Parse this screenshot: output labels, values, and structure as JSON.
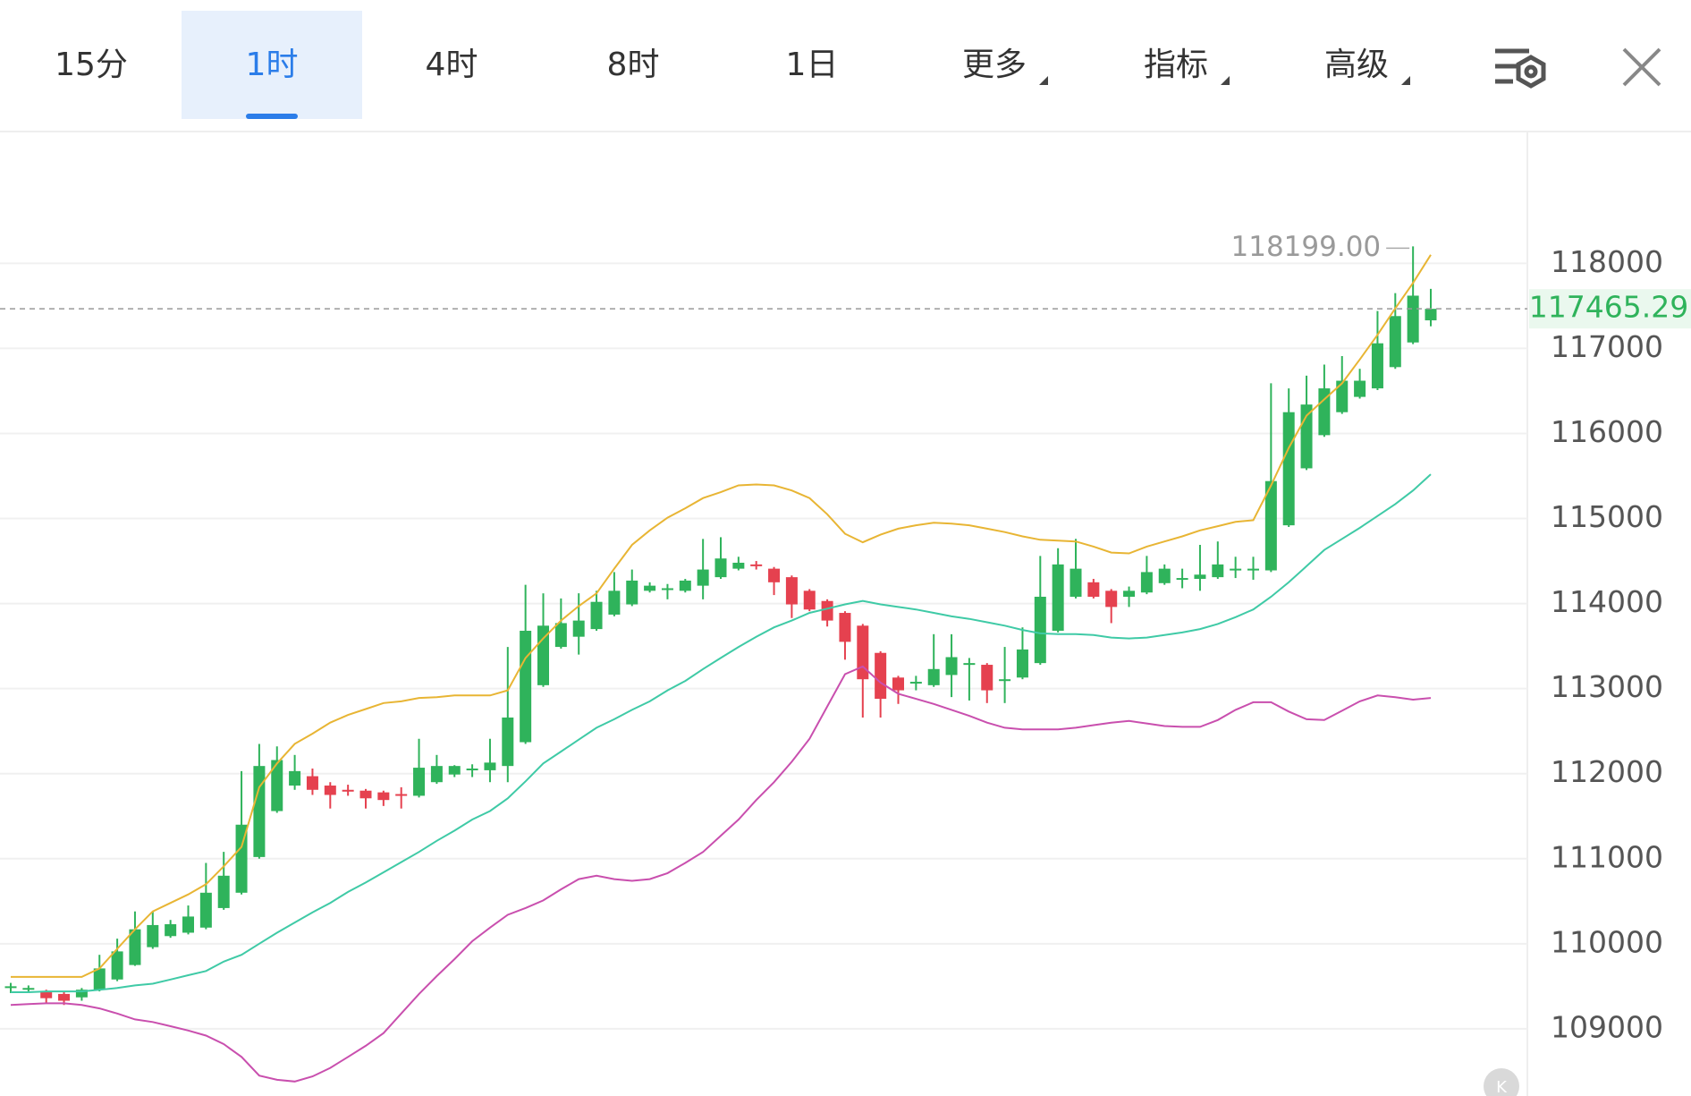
{
  "tabs": {
    "items": [
      {
        "label": "15分"
      },
      {
        "label": "1时"
      },
      {
        "label": "4时"
      },
      {
        "label": "8时"
      },
      {
        "label": "1日"
      },
      {
        "label": "更多",
        "dropdown": true
      },
      {
        "label": "指标",
        "dropdown": true
      },
      {
        "label": "高级",
        "dropdown": true
      }
    ],
    "selected": 1
  },
  "chart_data": {
    "type": "candlestick",
    "categories": [
      null,
      null,
      null,
      null,
      null,
      null,
      null,
      null,
      null,
      null,
      null,
      null,
      null,
      null,
      null,
      null,
      null,
      null,
      null,
      null,
      null,
      null,
      null,
      null,
      null,
      null,
      null,
      null,
      null,
      null,
      null,
      null,
      null,
      null,
      null,
      null,
      null,
      null,
      null,
      null,
      null,
      null,
      null,
      null,
      null,
      null,
      null,
      null,
      null,
      null,
      null,
      null,
      null,
      null,
      null,
      null,
      null,
      null,
      null,
      null,
      null,
      null,
      null,
      null,
      null,
      null,
      null,
      null,
      null,
      null,
      null,
      null,
      null,
      null,
      null,
      null,
      null,
      null,
      null,
      null,
      null
    ],
    "up_color": "#2fb35b",
    "down_color": "#e5414f",
    "open": [
      109480,
      109470,
      109430,
      109410,
      109370,
      109460,
      109580,
      109750,
      109960,
      110090,
      110130,
      110190,
      110420,
      110600,
      111020,
      111560,
      111860,
      111970,
      111860,
      111810,
      111800,
      111780,
      111760,
      111740,
      111900,
      111990,
      112050,
      112040,
      112090,
      112370,
      113040,
      113490,
      113610,
      113700,
      113870,
      113990,
      114150,
      114170,
      114150,
      114210,
      114310,
      114410,
      114460,
      114410,
      114310,
      114150,
      114030,
      113890,
      113740,
      113420,
      113130,
      113070,
      113040,
      113160,
      113290,
      113280,
      113100,
      113130,
      113300,
      113680,
      114080,
      114250,
      114150,
      114080,
      114130,
      114240,
      114280,
      114290,
      114310,
      114400,
      114400,
      114390,
      114920,
      115590,
      115980,
      116250,
      116430,
      116530,
      116780,
      117070,
      117330
    ],
    "high": [
      109540,
      109510,
      109460,
      109440,
      109480,
      109870,
      110060,
      110380,
      110380,
      110280,
      110450,
      110950,
      111080,
      112030,
      112350,
      112320,
      112220,
      112060,
      111900,
      111870,
      111820,
      111800,
      111840,
      112410,
      112220,
      112100,
      112110,
      112410,
      113490,
      114220,
      114120,
      114060,
      114120,
      114150,
      114370,
      114400,
      114250,
      114230,
      114290,
      114760,
      114780,
      114550,
      114500,
      114430,
      114330,
      114170,
      114050,
      113910,
      113760,
      113440,
      113150,
      113150,
      113640,
      113640,
      113360,
      113300,
      113490,
      113720,
      114560,
      114650,
      114760,
      114290,
      114170,
      114200,
      114560,
      114460,
      114410,
      114690,
      114730,
      114550,
      114550,
      116590,
      116530,
      116680,
      116810,
      116910,
      116760,
      117440,
      117650,
      118199,
      117700
    ],
    "low": [
      109420,
      109420,
      109300,
      109280,
      109330,
      109440,
      109560,
      109740,
      109940,
      110070,
      110110,
      110170,
      110400,
      110580,
      111000,
      111540,
      111810,
      111750,
      111590,
      111740,
      111590,
      111620,
      111590,
      111720,
      111880,
      111960,
      111960,
      111900,
      111900,
      112350,
      113020,
      113470,
      113400,
      113680,
      113850,
      113970,
      114130,
      114050,
      114130,
      114050,
      114290,
      114390,
      114400,
      114100,
      113830,
      113910,
      113730,
      113340,
      112660,
      112660,
      112820,
      112980,
      113020,
      112900,
      112860,
      112830,
      112830,
      113110,
      113280,
      113660,
      114060,
      114060,
      113770,
      113960,
      114110,
      114220,
      114180,
      114150,
      114290,
      114300,
      114280,
      114370,
      114900,
      115570,
      115960,
      116230,
      116410,
      116510,
      116760,
      117050,
      117260
    ],
    "close": [
      109500,
      109480,
      109360,
      109330,
      109460,
      109710,
      109910,
      110170,
      110220,
      110230,
      110320,
      110600,
      110800,
      111400,
      112090,
      112160,
      112030,
      111810,
      111750,
      111800,
      111710,
      111690,
      111750,
      112070,
      112090,
      112090,
      112060,
      112130,
      112660,
      113680,
      113740,
      113770,
      113800,
      114020,
      114150,
      114270,
      114210,
      114180,
      114270,
      114400,
      114530,
      114480,
      114450,
      114250,
      113990,
      113930,
      113800,
      113550,
      113110,
      112880,
      112980,
      113080,
      113230,
      113370,
      113300,
      112980,
      113110,
      113460,
      114080,
      114460,
      114410,
      114080,
      113960,
      114150,
      114370,
      114410,
      114300,
      114340,
      114460,
      114410,
      114410,
      115440,
      116250,
      116340,
      116530,
      116620,
      116620,
      117060,
      117380,
      117620,
      117465.29
    ],
    "series": [
      {
        "color": "#e8b534",
        "values": [
          109610,
          109610,
          109610,
          109610,
          109610,
          109710,
          109940,
          110170,
          110380,
          110480,
          110580,
          110700,
          110910,
          111140,
          111840,
          112120,
          112350,
          112470,
          112600,
          112690,
          112760,
          112830,
          112850,
          112890,
          112900,
          112920,
          112920,
          112920,
          112980,
          113360,
          113590,
          113800,
          113970,
          114120,
          114410,
          114690,
          114860,
          115010,
          115120,
          115240,
          115310,
          115390,
          115400,
          115390,
          115330,
          115240,
          115050,
          114820,
          114720,
          114810,
          114880,
          114920,
          114950,
          114940,
          114920,
          114880,
          114840,
          114790,
          114750,
          114740,
          114730,
          114670,
          114600,
          114590,
          114670,
          114730,
          114790,
          114860,
          114910,
          114960,
          114980,
          115390,
          115830,
          116210,
          116400,
          116590,
          116870,
          117160,
          117470,
          117770,
          118100
        ]
      },
      {
        "color": "#3fcaa6",
        "values": [
          109430,
          109430,
          109440,
          109440,
          109440,
          109460,
          109480,
          109510,
          109530,
          109580,
          109630,
          109680,
          109790,
          109870,
          110000,
          110130,
          110250,
          110370,
          110480,
          110610,
          110720,
          110840,
          110960,
          111080,
          111210,
          111330,
          111460,
          111560,
          111710,
          111910,
          112120,
          112260,
          112400,
          112540,
          112640,
          112750,
          112850,
          112980,
          113090,
          113230,
          113360,
          113490,
          113610,
          113720,
          113800,
          113890,
          113940,
          113990,
          114030,
          113990,
          113960,
          113930,
          113890,
          113850,
          113820,
          113780,
          113740,
          113690,
          113650,
          113640,
          113640,
          113630,
          113600,
          113590,
          113600,
          113630,
          113660,
          113700,
          113760,
          113840,
          113930,
          114080,
          114250,
          114440,
          114630,
          114760,
          114890,
          115030,
          115170,
          115330,
          115520
        ]
      },
      {
        "color": "#c94fae",
        "values": [
          109280,
          109290,
          109300,
          109300,
          109280,
          109240,
          109180,
          109110,
          109080,
          109030,
          108980,
          108920,
          108820,
          108670,
          108450,
          108400,
          108380,
          108440,
          108540,
          108670,
          108800,
          108950,
          109180,
          109410,
          109620,
          109820,
          110030,
          110190,
          110340,
          110420,
          110510,
          110640,
          110760,
          110800,
          110760,
          110740,
          110760,
          110830,
          110950,
          111080,
          111270,
          111460,
          111690,
          111900,
          112140,
          112410,
          112790,
          113170,
          113260,
          113070,
          112940,
          112880,
          112820,
          112750,
          112680,
          112600,
          112540,
          112520,
          112520,
          112520,
          112540,
          112570,
          112600,
          112620,
          112590,
          112560,
          112550,
          112550,
          112630,
          112750,
          112840,
          112840,
          112730,
          112640,
          112630,
          112740,
          112850,
          112920,
          112900,
          112870,
          112890
        ]
      }
    ],
    "ylim": [
      108210,
      119550
    ],
    "yticks": [
      109000,
      110000,
      111000,
      112000,
      113000,
      114000,
      115000,
      116000,
      117000,
      118000
    ],
    "grid": true,
    "last_price": 117465.29,
    "annotations": [
      {
        "label": "118199.00",
        "value": 118199
      }
    ]
  }
}
